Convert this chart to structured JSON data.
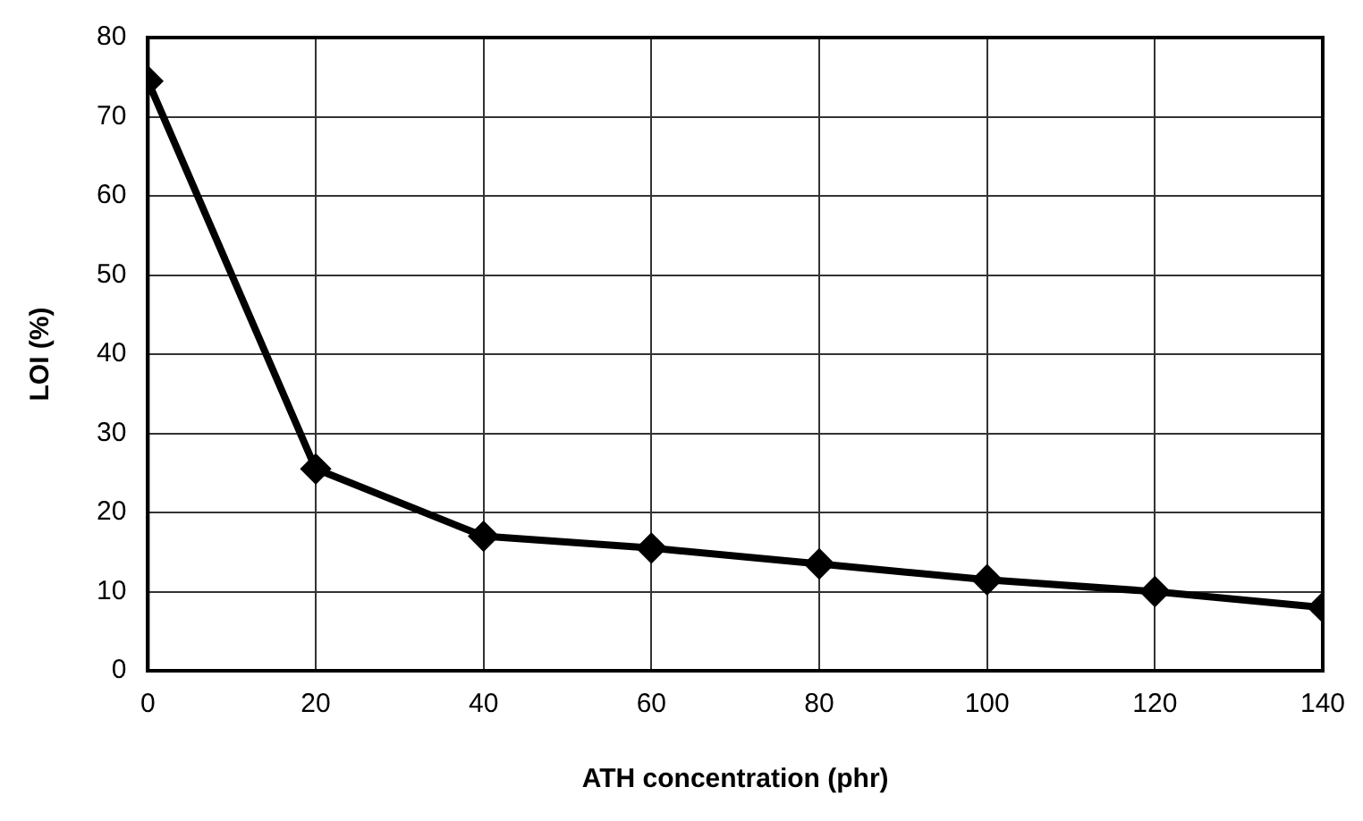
{
  "chart_data": {
    "type": "line",
    "xlabel": "ATH concentration (phr)",
    "ylabel": "LOI (%)",
    "x": [
      0,
      20,
      40,
      60,
      80,
      100,
      120,
      140
    ],
    "series": [
      {
        "color": "#000000",
        "values": [
          74.5,
          25.5,
          17,
          15.5,
          13.5,
          11.5,
          10,
          8
        ]
      }
    ],
    "xlim": [
      0,
      140
    ],
    "xticks": [
      0,
      20,
      40,
      60,
      80,
      100,
      120,
      140
    ],
    "ylim": [
      0,
      80
    ],
    "yticks": [
      0,
      10,
      20,
      30,
      40,
      50,
      60,
      70,
      80
    ],
    "grid": true,
    "legend": false,
    "marker": "diamond",
    "line_style": "solid"
  }
}
